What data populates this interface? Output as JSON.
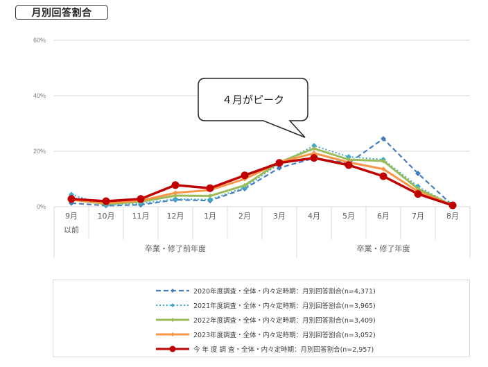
{
  "title": "月別回答割合",
  "callout": "４月がピーク",
  "chart_data": {
    "type": "line",
    "title": "月別回答割合",
    "xlabel": "",
    "ylabel": "",
    "ylim": [
      0,
      60
    ],
    "yticks": [
      "0%",
      "20%",
      "40%",
      "60%"
    ],
    "grid": true,
    "legend_position": "bottom",
    "categories": [
      "9月以前",
      "10月",
      "11月",
      "12月",
      "1月",
      "2月",
      "3月",
      "4月",
      "5月",
      "6月",
      "7月",
      "8月"
    ],
    "category_labels": [
      [
        "9月",
        "以前"
      ],
      [
        "10月"
      ],
      [
        "11月"
      ],
      [
        "12月"
      ],
      [
        "1月"
      ],
      [
        "2月"
      ],
      [
        "3月"
      ],
      [
        "4月"
      ],
      [
        "5月"
      ],
      [
        "6月"
      ],
      [
        "7月"
      ],
      [
        "8月"
      ]
    ],
    "category_groups": [
      {
        "label": "卒業・修了前年度",
        "start": 0,
        "end": 6
      },
      {
        "label": "卒業・修了年度",
        "start": 7,
        "end": 11
      }
    ],
    "annotations": [
      {
        "text": "４月がピーク",
        "target": "4月"
      }
    ],
    "series": [
      {
        "name": "2020年度調査・全体・内々定時期：月別回答割合(n=4,371)",
        "color": "#4a7ebb",
        "style": "dashed",
        "values": [
          1.3,
          0.4,
          0.7,
          2.5,
          2.2,
          6.5,
          14.0,
          17.5,
          15.7,
          24.5,
          12.0,
          0.5
        ]
      },
      {
        "name": "2021年度調査・全体・内々定時期：月別回答割合(n=3,965)",
        "color": "#3fa7c9",
        "style": "dotted",
        "values": [
          4.4,
          0.5,
          1.2,
          2.8,
          2.6,
          7.0,
          15.5,
          22.0,
          18.0,
          17.0,
          7.3,
          0.5
        ]
      },
      {
        "name": "2022年度調査・全体・内々定時期：月別回答割合(n=3,409)",
        "color": "#9bbb59",
        "style": "solid",
        "values": [
          2.5,
          1.0,
          1.8,
          4.0,
          3.9,
          7.7,
          16.0,
          21.0,
          17.0,
          16.5,
          6.5,
          0.5
        ]
      },
      {
        "name": "2023年度調査・全体・内々定時期：月別回答割合(n=3,052)",
        "color": "#f79646",
        "style": "solid",
        "values": [
          2.5,
          1.3,
          2.2,
          5.0,
          6.0,
          10.0,
          16.0,
          19.3,
          16.0,
          13.6,
          5.5,
          0.5
        ]
      },
      {
        "name": "今 年 度 調 査・全体・内々定時期：月別回答割合(n=2,957)",
        "color": "#c00000",
        "style": "solid-bold",
        "values": [
          2.8,
          2.0,
          2.8,
          7.8,
          6.7,
          11.3,
          15.8,
          17.6,
          15.0,
          11.0,
          4.6,
          0.5
        ]
      }
    ]
  }
}
